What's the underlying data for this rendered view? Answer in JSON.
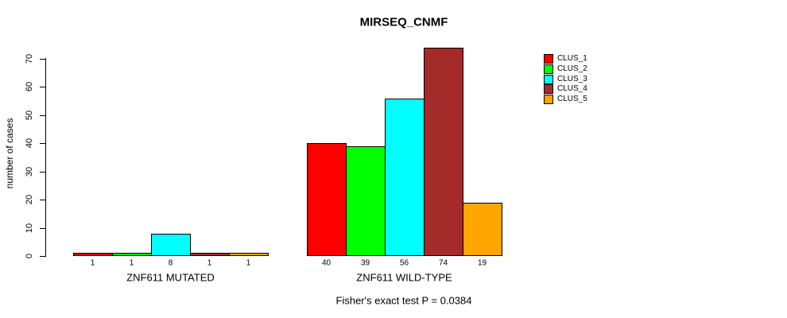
{
  "title": "MIRSEQ_CNMF",
  "annotation": "Fisher's exact test P = 0.0384",
  "y_axis": {
    "label": "number of cases",
    "ticks": [
      0,
      10,
      20,
      30,
      40,
      50,
      60,
      70
    ]
  },
  "legend": [
    {
      "label": "CLUS_1",
      "color": "#FF0000"
    },
    {
      "label": "CLUS_2",
      "color": "#00FF00"
    },
    {
      "label": "CLUS_3",
      "color": "#00FFFF"
    },
    {
      "label": "CLUS_4",
      "color": "#A52A2A"
    },
    {
      "label": "CLUS_5",
      "color": "#FFA500"
    }
  ],
  "chart_data": {
    "type": "bar",
    "title": "MIRSEQ_CNMF",
    "xlabel": "",
    "ylabel": "number of cases",
    "ylim": [
      0,
      74
    ],
    "y_ticks": [
      0,
      10,
      20,
      30,
      40,
      50,
      60,
      70
    ],
    "grid": false,
    "legend_position": "right",
    "series": [
      "CLUS_1",
      "CLUS_2",
      "CLUS_3",
      "CLUS_4",
      "CLUS_5"
    ],
    "series_colors": [
      "#FF0000",
      "#00FF00",
      "#00FFFF",
      "#A52A2A",
      "#FFA500"
    ],
    "groups": [
      {
        "label": "ZNF611 MUTATED",
        "values": [
          1,
          1,
          8,
          1,
          1
        ]
      },
      {
        "label": "ZNF611 WILD-TYPE",
        "values": [
          40,
          39,
          56,
          74,
          19
        ]
      }
    ],
    "annotation": "Fisher's exact test P = 0.0384"
  }
}
